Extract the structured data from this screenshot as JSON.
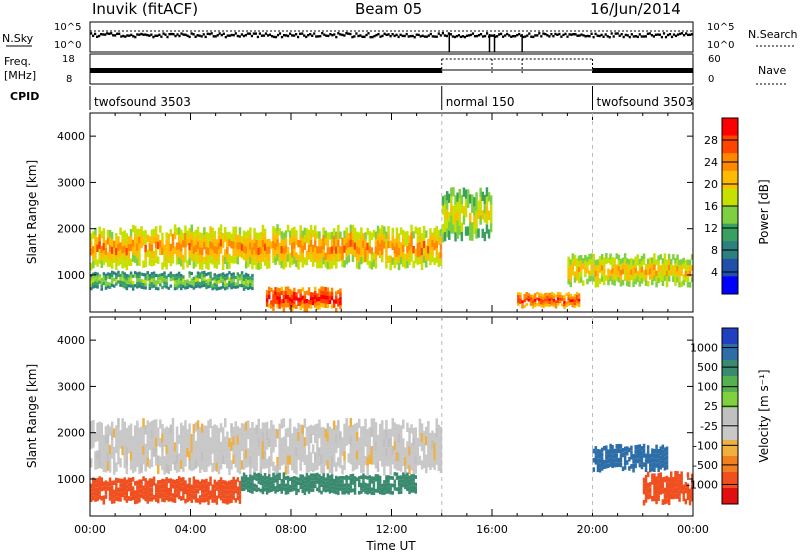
{
  "header": {
    "station": "Inuvik (fitACF)",
    "beam": "Beam 05",
    "date": "16/Jun/2014"
  },
  "params": {
    "nsky_label": "N.Sky",
    "nsearch_label": "N.Search",
    "freq_label_line1": "Freq.",
    "freq_label_line2": "[MHz]",
    "nave_label": "Nave",
    "cpid_label": "CPID",
    "noise_ticks_left": [
      "10^5",
      "10^0"
    ],
    "noise_ticks_right": [
      "10^5",
      "10^0"
    ],
    "freq_ticks": [
      "18",
      "8"
    ],
    "nave_ticks": [
      "60",
      "0"
    ],
    "cpid_segments": [
      {
        "label": "twofsound 3503",
        "start": 0.0,
        "end": 14.0
      },
      {
        "label": "normal 150",
        "start": 14.0,
        "end": 20.0
      },
      {
        "label": "twofsound 3503",
        "start": 20.0,
        "end": 24.0
      }
    ]
  },
  "colorbars": {
    "power": {
      "label": "Power [dB]",
      "ticks": [
        "28",
        "24",
        "20",
        "16",
        "12",
        "8",
        "4"
      ],
      "colors": [
        "#ff0000",
        "#ff4400",
        "#ff8800",
        "#ffbb00",
        "#c8e000",
        "#7fd040",
        "#3aa060",
        "#2c8080",
        "#2050a8",
        "#0000ff"
      ]
    },
    "velocity": {
      "label": "Velocity [m s⁻¹]",
      "ticks": [
        "1000",
        "500",
        "100",
        "25",
        "-25",
        "-100",
        "-500",
        "-1000"
      ],
      "colors": [
        "#2040c0",
        "#2e6ea8",
        "#3a8a70",
        "#56b050",
        "#80d040",
        "#c0c0c0",
        "#c8c8c8",
        "#f0b040",
        "#f08020",
        "#f05020",
        "#e01010"
      ]
    }
  },
  "chart_data": [
    {
      "type": "heatmap",
      "title": "Power",
      "xlabel": "Time UT",
      "ylabel": "Slant Range [km]",
      "x_ticks": [
        "00:00",
        "04:00",
        "08:00",
        "12:00",
        "16:00",
        "20:00",
        "00:00"
      ],
      "y_ticks": [
        "1000",
        "2000",
        "3000",
        "4000"
      ],
      "xlim": [
        0,
        24
      ],
      "ylim": [
        200,
        4500
      ],
      "colorbar_label": "Power [dB]",
      "colorbar_ticks": [
        4,
        8,
        12,
        16,
        20,
        24,
        28
      ],
      "bands": [
        {
          "t_start": 0.0,
          "t_end": 14.0,
          "range_low": 1200,
          "range_high": 2000,
          "power_db": 22
        },
        {
          "t_start": 0.0,
          "t_end": 6.5,
          "range_low": 700,
          "range_high": 1050,
          "power_db": 14
        },
        {
          "t_start": 7.0,
          "t_end": 10.0,
          "range_low": 250,
          "range_high": 700,
          "power_db": 28
        },
        {
          "t_start": 14.0,
          "t_end": 16.0,
          "range_low": 1800,
          "range_high": 2800,
          "power_db": 18
        },
        {
          "t_start": 17.0,
          "t_end": 19.5,
          "range_low": 300,
          "range_high": 600,
          "power_db": 26
        },
        {
          "t_start": 19.0,
          "t_end": 24.0,
          "range_low": 800,
          "range_high": 1400,
          "power_db": 20
        }
      ]
    },
    {
      "type": "heatmap",
      "title": "Velocity",
      "xlabel": "Time UT",
      "ylabel": "Slant Range [km]",
      "x_ticks": [
        "00:00",
        "04:00",
        "08:00",
        "12:00",
        "16:00",
        "20:00",
        "00:00"
      ],
      "y_ticks": [
        "1000",
        "2000",
        "3000",
        "4000"
      ],
      "xlim": [
        0,
        24
      ],
      "ylim": [
        200,
        4500
      ],
      "colorbar_label": "Velocity [m s⁻¹]",
      "colorbar_ticks": [
        -1000,
        -500,
        -100,
        -25,
        25,
        100,
        500,
        1000
      ],
      "bands": [
        {
          "t_start": 0.0,
          "t_end": 14.0,
          "range_low": 1200,
          "range_high": 2200,
          "velocity": 0
        },
        {
          "t_start": 0.0,
          "t_end": 6.0,
          "range_low": 500,
          "range_high": 1000,
          "velocity": -300
        },
        {
          "t_start": 6.0,
          "t_end": 13.0,
          "range_low": 700,
          "range_high": 1100,
          "velocity": 300
        },
        {
          "t_start": 20.0,
          "t_end": 23.0,
          "range_low": 1200,
          "range_high": 1700,
          "velocity": 800
        },
        {
          "t_start": 22.0,
          "t_end": 24.0,
          "range_low": 500,
          "range_high": 1100,
          "velocity": -400
        }
      ]
    }
  ]
}
